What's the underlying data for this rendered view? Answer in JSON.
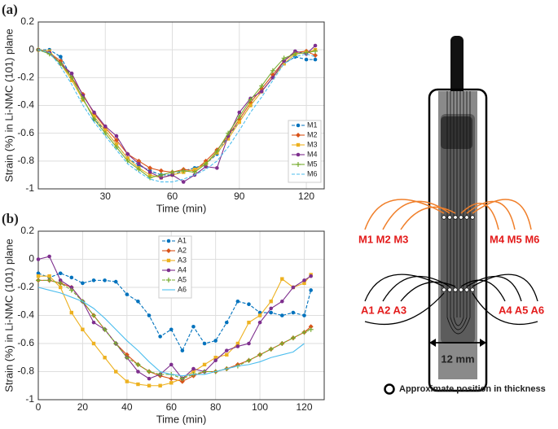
{
  "chart_data": [
    {
      "type": "line",
      "panel_label": "(a)",
      "x_label": "Time (min)",
      "y_label": "Strain (%) in Li-NMC (101) plane",
      "x": [
        0,
        5,
        10,
        15,
        20,
        25,
        30,
        35,
        40,
        45,
        50,
        55,
        60,
        65,
        70,
        75,
        80,
        85,
        90,
        95,
        100,
        105,
        110,
        115,
        120,
        124
      ],
      "xlim": [
        0,
        128
      ],
      "xticks": [
        30,
        60,
        90,
        120
      ],
      "ylim": [
        -1,
        0.2
      ],
      "yticks": [
        -1,
        -0.8,
        -0.6,
        -0.4,
        -0.2,
        0,
        0.2
      ],
      "grid": true,
      "legend": "lower-right",
      "series": [
        {
          "name": "M1",
          "color": "#0072bd",
          "dashed": true,
          "marker": "circle",
          "values": [
            0,
            0,
            -0.05,
            -0.2,
            -0.35,
            -0.5,
            -0.58,
            -0.68,
            -0.78,
            -0.83,
            -0.87,
            -0.9,
            -0.9,
            -0.87,
            -0.85,
            -0.82,
            -0.75,
            -0.62,
            -0.52,
            -0.4,
            -0.3,
            -0.2,
            -0.1,
            -0.05,
            -0.07,
            -0.07
          ]
        },
        {
          "name": "M2",
          "color": "#d95319",
          "dashed": false,
          "marker": "diamond",
          "values": [
            0,
            -0.02,
            -0.08,
            -0.2,
            -0.32,
            -0.46,
            -0.56,
            -0.65,
            -0.75,
            -0.8,
            -0.85,
            -0.87,
            -0.88,
            -0.86,
            -0.87,
            -0.8,
            -0.72,
            -0.62,
            -0.5,
            -0.38,
            -0.28,
            -0.18,
            -0.08,
            -0.02,
            -0.01,
            -0.04
          ]
        },
        {
          "name": "M3",
          "color": "#edb120",
          "dashed": false,
          "marker": "square",
          "values": [
            0,
            -0.01,
            -0.1,
            -0.22,
            -0.36,
            -0.48,
            -0.58,
            -0.68,
            -0.78,
            -0.85,
            -0.9,
            -0.92,
            -0.9,
            -0.88,
            -0.86,
            -0.82,
            -0.74,
            -0.64,
            -0.52,
            -0.4,
            -0.3,
            -0.2,
            -0.1,
            -0.03,
            -0.02,
            0
          ]
        },
        {
          "name": "M4",
          "color": "#7e2f8e",
          "dashed": false,
          "marker": "circle",
          "values": [
            0,
            -0.02,
            -0.1,
            -0.17,
            -0.33,
            -0.45,
            -0.55,
            -0.62,
            -0.75,
            -0.82,
            -0.88,
            -0.92,
            -0.9,
            -0.95,
            -0.9,
            -0.84,
            -0.85,
            -0.62,
            -0.45,
            -0.35,
            -0.3,
            -0.2,
            -0.08,
            -0.01,
            -0.03,
            0.03
          ]
        },
        {
          "name": "M5",
          "color": "#77ac30",
          "dashed": false,
          "marker": "plus",
          "values": [
            0,
            -0.03,
            -0.1,
            -0.2,
            -0.35,
            -0.5,
            -0.6,
            -0.7,
            -0.8,
            -0.86,
            -0.92,
            -0.9,
            -0.88,
            -0.87,
            -0.88,
            -0.82,
            -0.73,
            -0.6,
            -0.48,
            -0.36,
            -0.26,
            -0.15,
            -0.06,
            -0.03,
            -0.02,
            -0.01
          ]
        },
        {
          "name": "M6",
          "color": "#4dbeee",
          "dashed": true,
          "marker": "none",
          "values": [
            0,
            -0.02,
            -0.12,
            -0.25,
            -0.4,
            -0.52,
            -0.62,
            -0.72,
            -0.82,
            -0.88,
            -0.93,
            -0.95,
            -0.95,
            -0.93,
            -0.9,
            -0.86,
            -0.8,
            -0.7,
            -0.58,
            -0.45,
            -0.34,
            -0.22,
            -0.1,
            -0.05,
            -0.03,
            -0.05
          ]
        }
      ]
    },
    {
      "type": "line",
      "panel_label": "(b)",
      "x_label": "Time (min)",
      "y_label": "Strain (%) in Li-NMC (101) plane",
      "x": [
        0,
        5,
        10,
        15,
        20,
        25,
        30,
        35,
        40,
        45,
        50,
        55,
        60,
        65,
        70,
        75,
        80,
        85,
        90,
        95,
        100,
        105,
        110,
        115,
        120,
        123
      ],
      "xlim": [
        0,
        129
      ],
      "xticks": [
        0,
        20,
        40,
        60,
        80,
        100,
        120
      ],
      "ylim": [
        -1,
        0.2
      ],
      "yticks": [
        -1,
        -0.8,
        -0.6,
        -0.4,
        -0.2,
        0,
        0.2
      ],
      "grid": true,
      "legend": "upper-center",
      "series": [
        {
          "name": "A1",
          "color": "#0072bd",
          "dashed": true,
          "marker": "circle",
          "values": [
            -0.1,
            -0.13,
            -0.1,
            -0.13,
            -0.17,
            -0.15,
            -0.15,
            -0.16,
            -0.25,
            -0.3,
            -0.4,
            -0.55,
            -0.5,
            -0.65,
            -0.48,
            -0.6,
            -0.58,
            -0.45,
            -0.3,
            -0.32,
            -0.38,
            -0.38,
            -0.4,
            -0.38,
            -0.4,
            -0.22
          ]
        },
        {
          "name": "A2",
          "color": "#d95319",
          "dashed": false,
          "marker": "diamond",
          "values": [
            -0.15,
            -0.15,
            -0.17,
            -0.2,
            -0.3,
            -0.4,
            -0.5,
            -0.6,
            -0.68,
            -0.75,
            -0.8,
            -0.83,
            -0.85,
            -0.87,
            -0.83,
            -0.8,
            -0.8,
            -0.78,
            -0.75,
            -0.72,
            -0.68,
            -0.64,
            -0.6,
            -0.56,
            -0.52,
            -0.48
          ]
        },
        {
          "name": "A3",
          "color": "#edb120",
          "dashed": false,
          "marker": "square",
          "values": [
            -0.12,
            -0.12,
            -0.2,
            -0.38,
            -0.5,
            -0.6,
            -0.7,
            -0.8,
            -0.87,
            -0.89,
            -0.9,
            -0.9,
            -0.88,
            -0.85,
            -0.8,
            -0.75,
            -0.7,
            -0.68,
            -0.6,
            -0.45,
            -0.4,
            -0.3,
            -0.14,
            -0.2,
            -0.17,
            -0.11
          ]
        },
        {
          "name": "A4",
          "color": "#7e2f8e",
          "dashed": false,
          "marker": "circle",
          "values": [
            0,
            0.02,
            -0.15,
            -0.2,
            -0.3,
            -0.45,
            -0.5,
            -0.6,
            -0.7,
            -0.8,
            -0.85,
            -0.82,
            -0.75,
            -0.85,
            -0.78,
            -0.8,
            -0.72,
            -0.65,
            -0.62,
            -0.6,
            -0.45,
            -0.35,
            -0.3,
            -0.2,
            -0.15,
            -0.12
          ]
        },
        {
          "name": "A5",
          "color": "#77ac30",
          "dashed": true,
          "marker": "plus",
          "values": [
            -0.15,
            -0.15,
            -0.17,
            -0.22,
            -0.3,
            -0.4,
            -0.5,
            -0.6,
            -0.7,
            -0.75,
            -0.8,
            -0.82,
            -0.82,
            -0.85,
            -0.82,
            -0.8,
            -0.8,
            -0.78,
            -0.76,
            -0.72,
            -0.68,
            -0.64,
            -0.6,
            -0.56,
            -0.52,
            -0.5
          ]
        },
        {
          "name": "A6",
          "color": "#4dbeee",
          "dashed": false,
          "marker": "none",
          "values": [
            -0.2,
            -0.22,
            -0.24,
            -0.27,
            -0.3,
            -0.35,
            -0.42,
            -0.5,
            -0.58,
            -0.65,
            -0.73,
            -0.8,
            -0.82,
            -0.83,
            -0.82,
            -0.82,
            -0.8,
            -0.78,
            -0.76,
            -0.75,
            -0.73,
            -0.7,
            -0.68,
            -0.66,
            -0.6,
            null
          ]
        }
      ]
    }
  ],
  "diagram": {
    "label_m_left": "M1 M2 M3",
    "label_m_right": "M4 M5 M6",
    "label_a_left": "A1 A2 A3",
    "label_a_right": "A4 A5 A6",
    "width_label": "12 mm",
    "legend": "Approximate position in thickness"
  }
}
